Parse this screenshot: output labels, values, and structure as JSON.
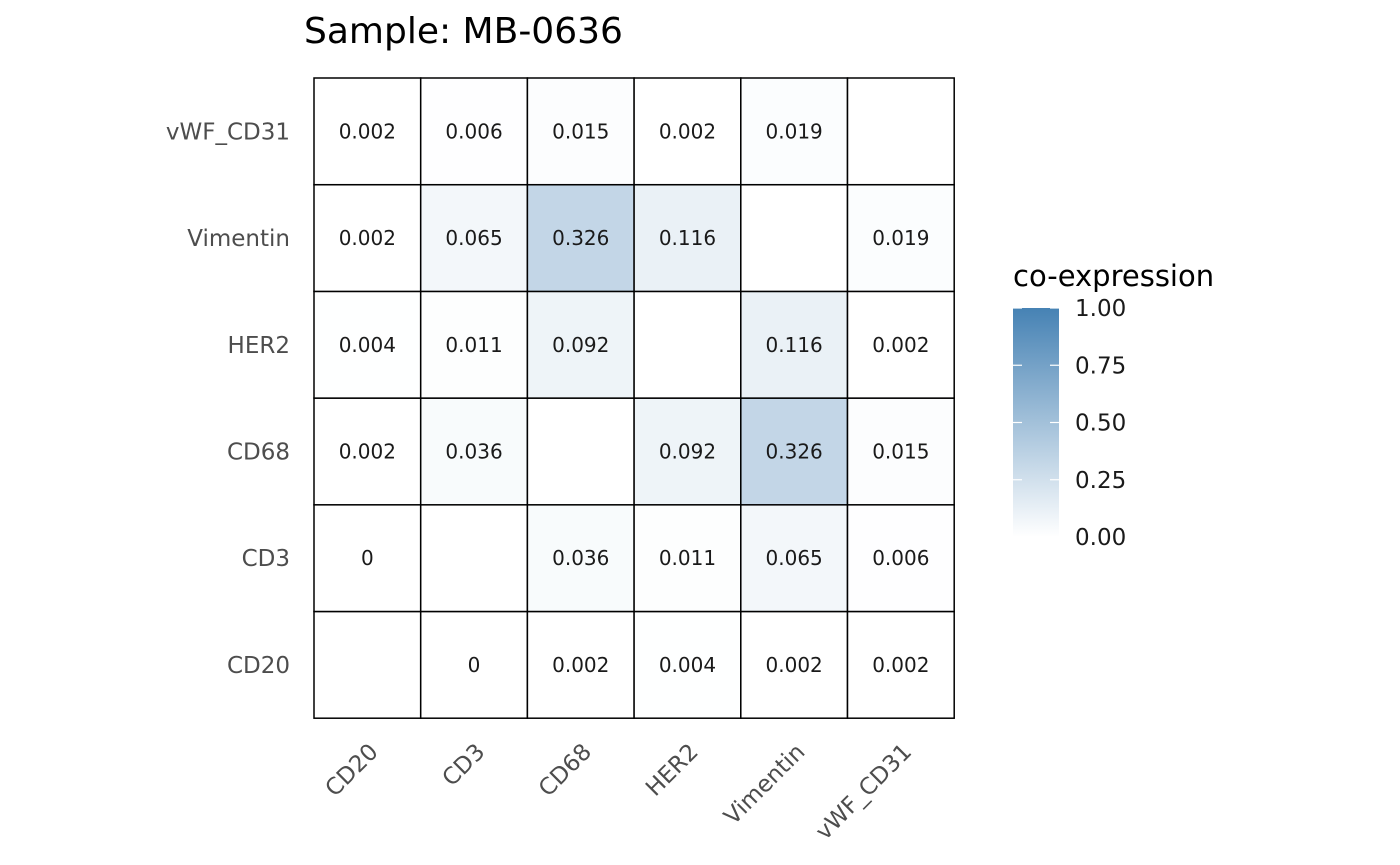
{
  "chart_data": {
    "type": "heatmap",
    "title": "Sample: MB-0636",
    "x_categories": [
      "CD20",
      "CD3",
      "CD68",
      "HER2",
      "Vimentin",
      "vWF_CD31"
    ],
    "y_categories": [
      "CD20",
      "CD3",
      "CD68",
      "HER2",
      "Vimentin",
      "vWF_CD31"
    ],
    "cells": [
      {
        "x": "CD20",
        "y": "CD20",
        "value": null,
        "label": ""
      },
      {
        "x": "CD3",
        "y": "CD20",
        "value": 0,
        "label": "0"
      },
      {
        "x": "CD68",
        "y": "CD20",
        "value": 0.002,
        "label": "0.002"
      },
      {
        "x": "HER2",
        "y": "CD20",
        "value": 0.004,
        "label": "0.004"
      },
      {
        "x": "Vimentin",
        "y": "CD20",
        "value": 0.002,
        "label": "0.002"
      },
      {
        "x": "vWF_CD31",
        "y": "CD20",
        "value": 0.002,
        "label": "0.002"
      },
      {
        "x": "CD20",
        "y": "CD3",
        "value": 0,
        "label": "0"
      },
      {
        "x": "CD3",
        "y": "CD3",
        "value": null,
        "label": ""
      },
      {
        "x": "CD68",
        "y": "CD3",
        "value": 0.036,
        "label": "0.036"
      },
      {
        "x": "HER2",
        "y": "CD3",
        "value": 0.011,
        "label": "0.011"
      },
      {
        "x": "Vimentin",
        "y": "CD3",
        "value": 0.065,
        "label": "0.065"
      },
      {
        "x": "vWF_CD31",
        "y": "CD3",
        "value": 0.006,
        "label": "0.006"
      },
      {
        "x": "CD20",
        "y": "CD68",
        "value": 0.002,
        "label": "0.002"
      },
      {
        "x": "CD3",
        "y": "CD68",
        "value": 0.036,
        "label": "0.036"
      },
      {
        "x": "CD68",
        "y": "CD68",
        "value": null,
        "label": ""
      },
      {
        "x": "HER2",
        "y": "CD68",
        "value": 0.092,
        "label": "0.092"
      },
      {
        "x": "Vimentin",
        "y": "CD68",
        "value": 0.326,
        "label": "0.326"
      },
      {
        "x": "vWF_CD31",
        "y": "CD68",
        "value": 0.015,
        "label": "0.015"
      },
      {
        "x": "CD20",
        "y": "HER2",
        "value": 0.004,
        "label": "0.004"
      },
      {
        "x": "CD3",
        "y": "HER2",
        "value": 0.011,
        "label": "0.011"
      },
      {
        "x": "CD68",
        "y": "HER2",
        "value": 0.092,
        "label": "0.092"
      },
      {
        "x": "HER2",
        "y": "HER2",
        "value": null,
        "label": ""
      },
      {
        "x": "Vimentin",
        "y": "HER2",
        "value": 0.116,
        "label": "0.116"
      },
      {
        "x": "vWF_CD31",
        "y": "HER2",
        "value": 0.002,
        "label": "0.002"
      },
      {
        "x": "CD20",
        "y": "Vimentin",
        "value": 0.002,
        "label": "0.002"
      },
      {
        "x": "CD3",
        "y": "Vimentin",
        "value": 0.065,
        "label": "0.065"
      },
      {
        "x": "CD68",
        "y": "Vimentin",
        "value": 0.326,
        "label": "0.326"
      },
      {
        "x": "HER2",
        "y": "Vimentin",
        "value": 0.116,
        "label": "0.116"
      },
      {
        "x": "Vimentin",
        "y": "Vimentin",
        "value": null,
        "label": ""
      },
      {
        "x": "vWF_CD31",
        "y": "Vimentin",
        "value": 0.019,
        "label": "0.019"
      },
      {
        "x": "CD20",
        "y": "vWF_CD31",
        "value": 0.002,
        "label": "0.002"
      },
      {
        "x": "CD3",
        "y": "vWF_CD31",
        "value": 0.006,
        "label": "0.006"
      },
      {
        "x": "CD68",
        "y": "vWF_CD31",
        "value": 0.015,
        "label": "0.015"
      },
      {
        "x": "HER2",
        "y": "vWF_CD31",
        "value": 0.002,
        "label": "0.002"
      },
      {
        "x": "Vimentin",
        "y": "vWF_CD31",
        "value": 0.019,
        "label": "0.019"
      },
      {
        "x": "vWF_CD31",
        "y": "vWF_CD31",
        "value": null,
        "label": ""
      }
    ],
    "legend": {
      "title": "co-expression",
      "placement": "right",
      "range": [
        0,
        1
      ],
      "ticks": [
        0,
        0.25,
        0.5,
        0.75,
        1
      ],
      "tick_labels": [
        "0.00",
        "0.25",
        "0.50",
        "0.75",
        "1.00"
      ],
      "low_color": "#ffffff",
      "high_color": "#4682b4"
    },
    "cell_border_color": "#000000",
    "grid": false
  }
}
